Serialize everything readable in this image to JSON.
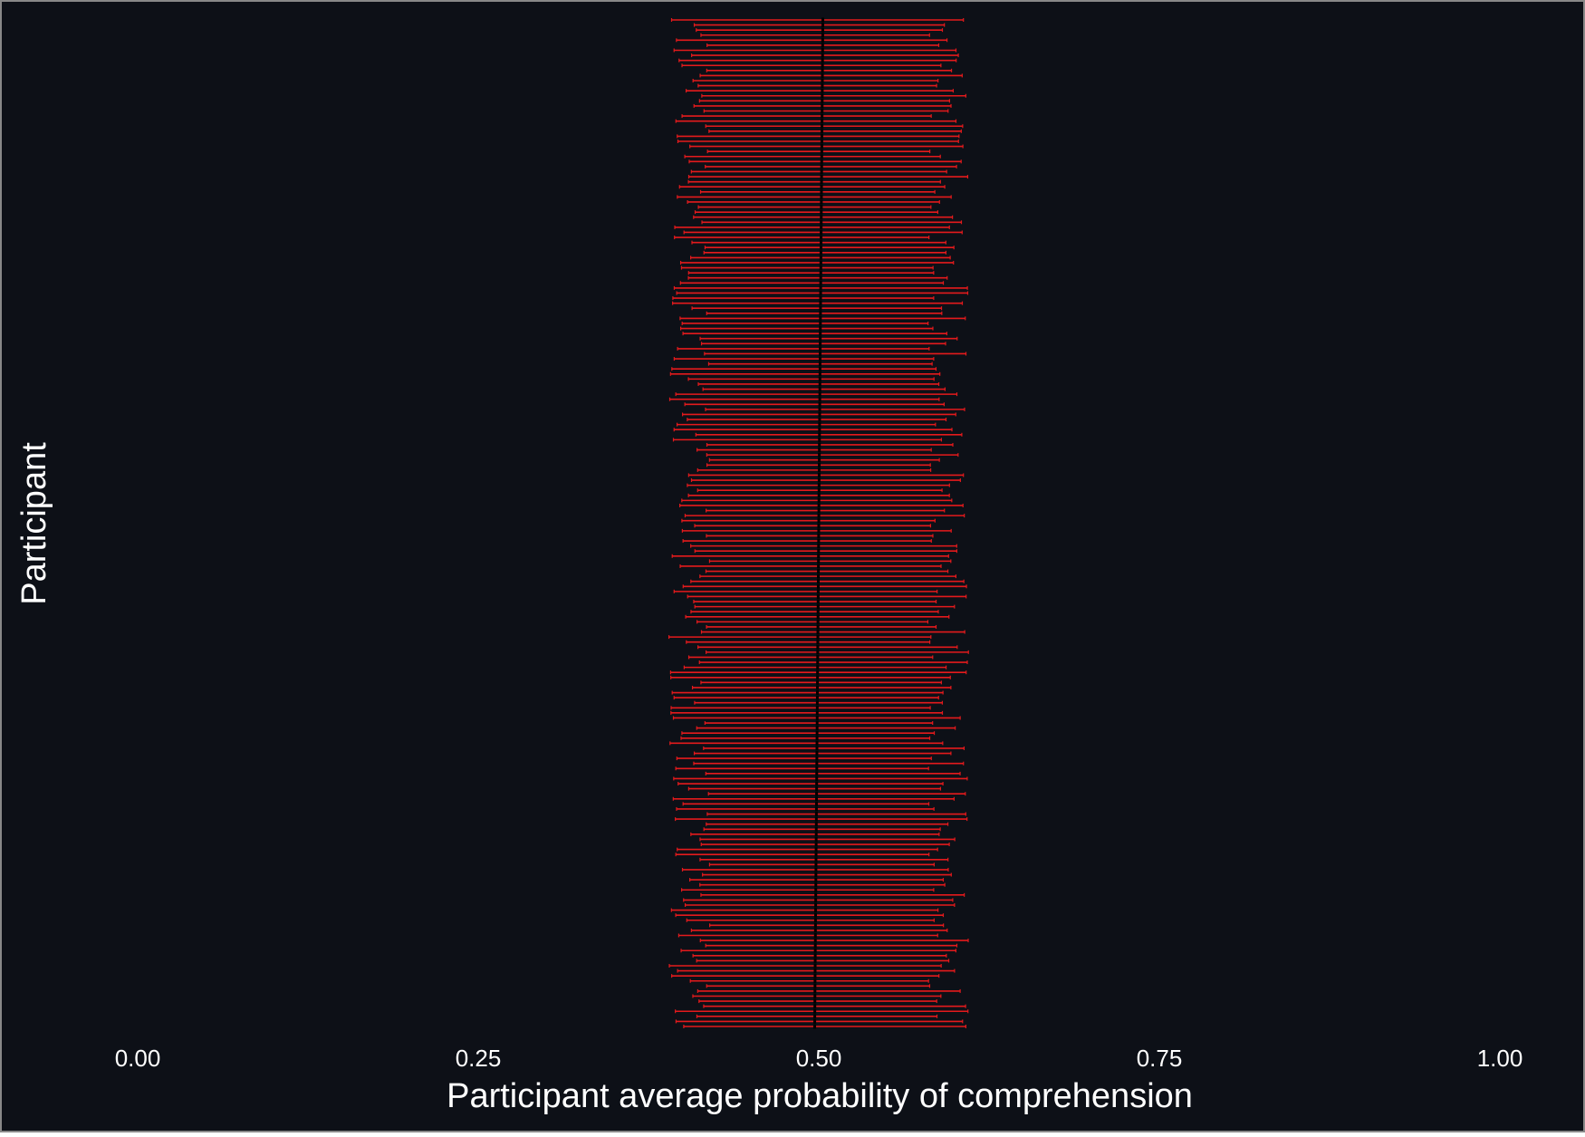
{
  "colors": {
    "panel_background": "#0d1017",
    "error_bar": "#e41a1c",
    "point": "#000000",
    "text": "#ffffff",
    "frame": "#888888"
  },
  "chart_data": {
    "type": "errorbar",
    "orientation": "horizontal",
    "xlabel": "Participant average probability of comprehension",
    "ylabel": "Participant",
    "xlim": [
      0,
      1
    ],
    "x_ticks": [
      0,
      0.25,
      0.5,
      0.75,
      1
    ],
    "x_tick_labels": [
      "0.00",
      "0.25",
      "0.50",
      "0.75",
      "1.00"
    ],
    "y_tick_labels_shown": false,
    "grid": false,
    "legend": "none",
    "n_participants": 200,
    "sorted_by_mean": "descending from top",
    "estimate_range": [
      0.497,
      0.503
    ],
    "interval_lower_range": [
      0.39,
      0.42
    ],
    "interval_upper_range": [
      0.58,
      0.61
    ]
  }
}
